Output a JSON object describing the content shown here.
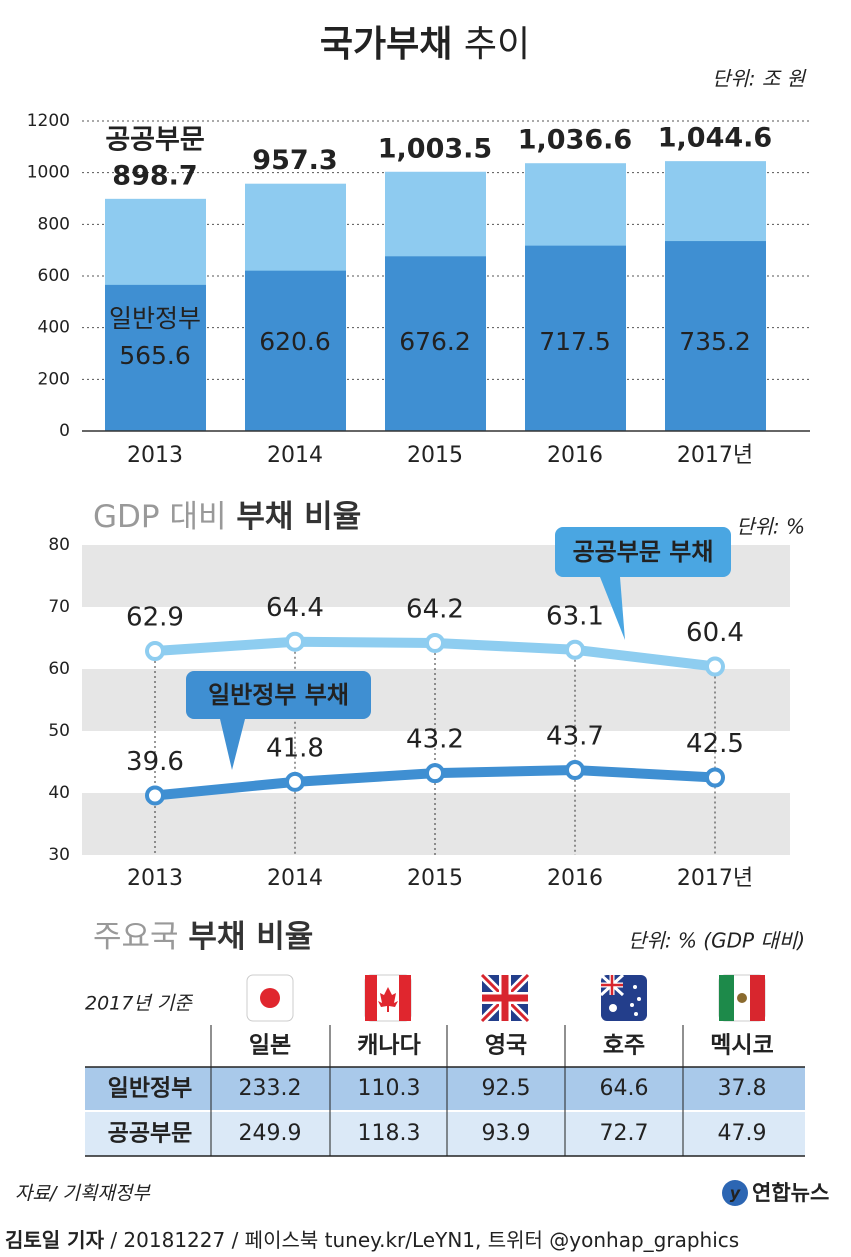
{
  "header": {
    "title": [
      "국가부채",
      "추이"
    ],
    "unit": "단위: 조 원"
  },
  "chart_data": [
    {
      "type": "bar",
      "barmode": "overlay",
      "categories": [
        "2013",
        "2014",
        "2015",
        "2016",
        "2017년"
      ],
      "series": [
        {
          "name": "공공부문",
          "color": "#8ecbf0",
          "values": [
            898.7,
            957.3,
            1003.5,
            1036.6,
            1044.6
          ],
          "value_labels": [
            "898.7",
            "957.3",
            "1,003.5",
            "1,036.6",
            "1,044.6"
          ]
        },
        {
          "name": "일반정부",
          "color": "#3f8fd2",
          "values": [
            565.6,
            620.6,
            676.2,
            717.5,
            735.2
          ]
        }
      ],
      "ylim": [
        0,
        1200
      ],
      "yticks": [
        0,
        200,
        400,
        600,
        800,
        1000,
        1200
      ],
      "grid": true
    },
    {
      "type": "line",
      "title": [
        "GDP 대비",
        "부채 비율"
      ],
      "unit": "단위: %",
      "categories": [
        "2013",
        "2014",
        "2015",
        "2016",
        "2017년"
      ],
      "series": [
        {
          "name": "공공부문 부채",
          "color": "#8ecdf0",
          "label_color": "#4aa6e2",
          "values": [
            62.9,
            64.4,
            64.2,
            63.1,
            60.4
          ]
        },
        {
          "name": "일반정부 부채",
          "color": "#3f8fd2",
          "label_color": "#3f8fd2",
          "values": [
            39.6,
            41.8,
            43.2,
            43.7,
            42.5
          ]
        }
      ],
      "ylim": [
        30,
        80
      ],
      "yticks": [
        30,
        40,
        50,
        60,
        70,
        80
      ],
      "bands": true
    }
  ],
  "table": {
    "title": [
      "주요국",
      "부채 비율"
    ],
    "unit": "단위: % (GDP 대비)",
    "note": "2017년 기준",
    "columns": [
      "일본",
      "캐나다",
      "영국",
      "호주",
      "멕시코"
    ],
    "rows": [
      {
        "label": "일반정부",
        "values": [
          "233.2",
          "110.3",
          "92.5",
          "64.6",
          "37.8"
        ]
      },
      {
        "label": "공공부문",
        "values": [
          "249.9",
          "118.3",
          "93.9",
          "72.7",
          "47.9"
        ]
      }
    ]
  },
  "footer": {
    "source": "자료/ 기획재정부",
    "logo": "연합뉴스",
    "author": "김토일 기자",
    "credit": "/ 20181227 / 페이스북 tuney.kr/LeYN1, 트위터 @yonhap_graphics"
  }
}
